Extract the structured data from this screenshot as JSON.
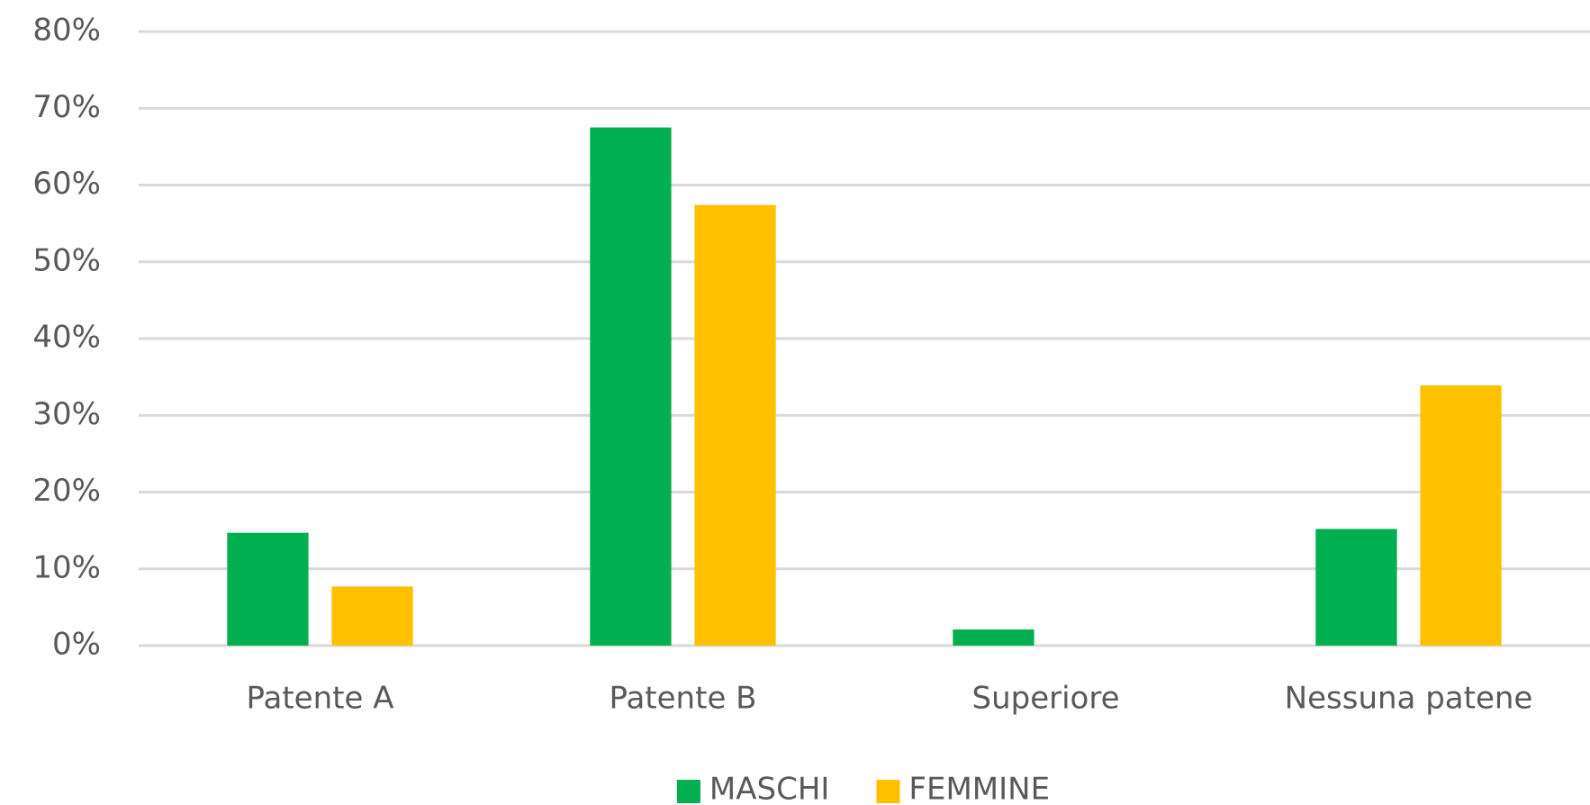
{
  "chart_data": {
    "type": "bar",
    "categories": [
      "Patente A",
      "Patente B",
      "Superiore",
      "Nessuna patene"
    ],
    "series": [
      {
        "name": "MASCHI",
        "color": "#00b050",
        "values": [
          14.7,
          67.5,
          2.1,
          15.2
        ]
      },
      {
        "name": "FEMMINE",
        "color": "#ffc000",
        "values": [
          7.7,
          57.4,
          0,
          33.9
        ]
      }
    ],
    "ylim": [
      0,
      80
    ],
    "yticks": [
      {
        "value": 0,
        "label": "0%"
      },
      {
        "value": 10,
        "label": "10%"
      },
      {
        "value": 20,
        "label": "20%"
      },
      {
        "value": 30,
        "label": "30%"
      },
      {
        "value": 40,
        "label": "40%"
      },
      {
        "value": 50,
        "label": "50%"
      },
      {
        "value": 60,
        "label": "60%"
      },
      {
        "value": 70,
        "label": "70%"
      },
      {
        "value": 80,
        "label": "80%"
      }
    ],
    "grid": true,
    "legend": "bottom"
  }
}
